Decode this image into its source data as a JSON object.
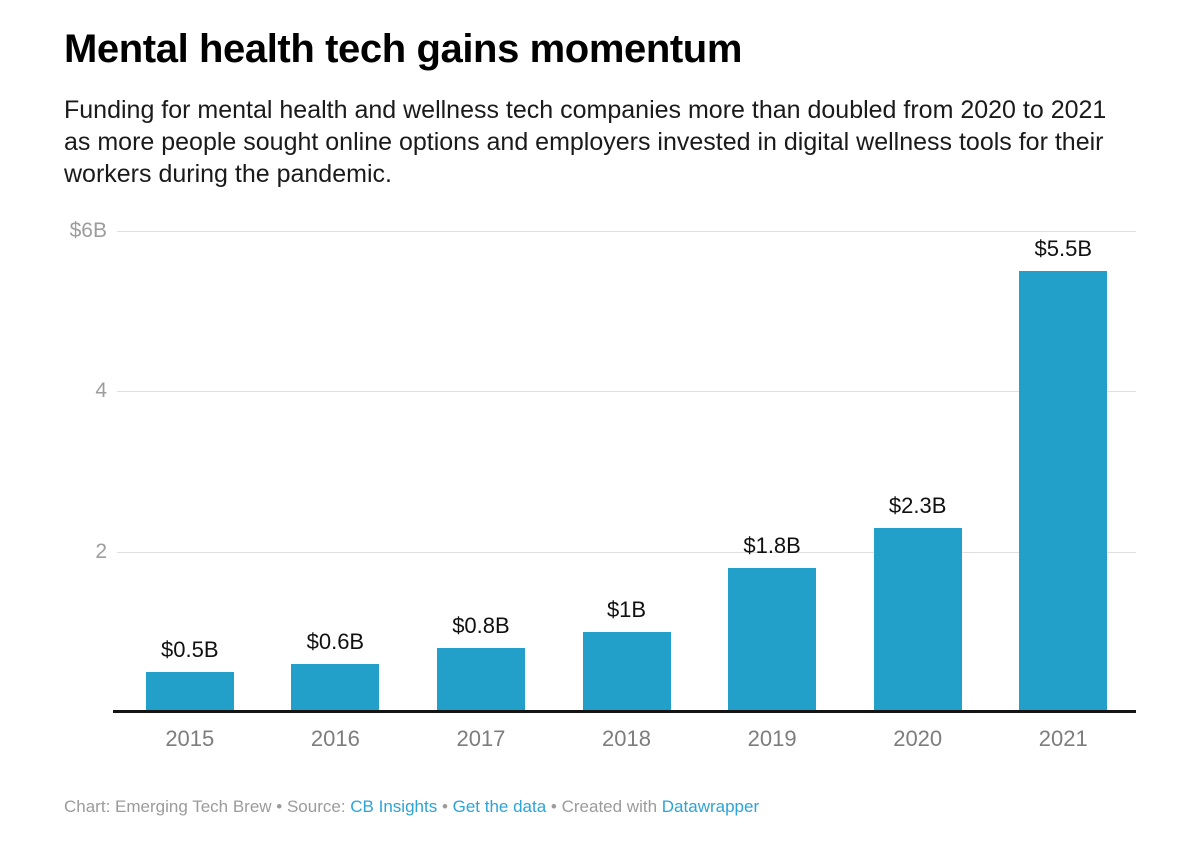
{
  "header": {
    "title": "Mental health tech gains momentum",
    "subtitle": "Funding for mental health and wellness tech companies more than doubled from 2020 to 2021 as more people sought online options and employers invested in digital wellness tools for their workers during the pandemic."
  },
  "chart_data": {
    "type": "bar",
    "title": "Mental health tech gains momentum",
    "categories": [
      "2015",
      "2016",
      "2017",
      "2018",
      "2019",
      "2020",
      "2021"
    ],
    "values": [
      0.5,
      0.6,
      0.8,
      1.0,
      1.8,
      2.3,
      5.5
    ],
    "value_labels": [
      "$0.5B",
      "$0.6B",
      "$0.8B",
      "$1B",
      "$1.8B",
      "$2.3B",
      "$5.5B"
    ],
    "xlabel": "",
    "ylabel": "",
    "unit": "USD billions",
    "ylim": [
      0,
      6
    ],
    "yticks": [
      {
        "value": 6,
        "label": "$6B"
      },
      {
        "value": 4,
        "label": "4"
      },
      {
        "value": 2,
        "label": "2"
      }
    ],
    "grid": true,
    "legend_position": "none",
    "bar_color": "#22a0c9"
  },
  "footer": {
    "chart_credit": "Chart: Emerging Tech Brew",
    "sep1": " • ",
    "source_label": "Source: ",
    "source_link": "CB Insights",
    "sep2": " • ",
    "data_link": "Get the data",
    "sep3": " • ",
    "created_with": "Created with ",
    "tool_link": "Datawrapper"
  },
  "colors": {
    "bar": "#22a0c9",
    "link": "#2ca4d5",
    "grid_line": "#e0e0e0",
    "axis_line": "#141414",
    "tick_label": "#9d9d9d",
    "year_label": "#7d7d7d",
    "value_label": "#111111",
    "footer_text": "#9b9b9b",
    "title_text": "#000000",
    "subtitle_text": "#1a1a1a"
  }
}
